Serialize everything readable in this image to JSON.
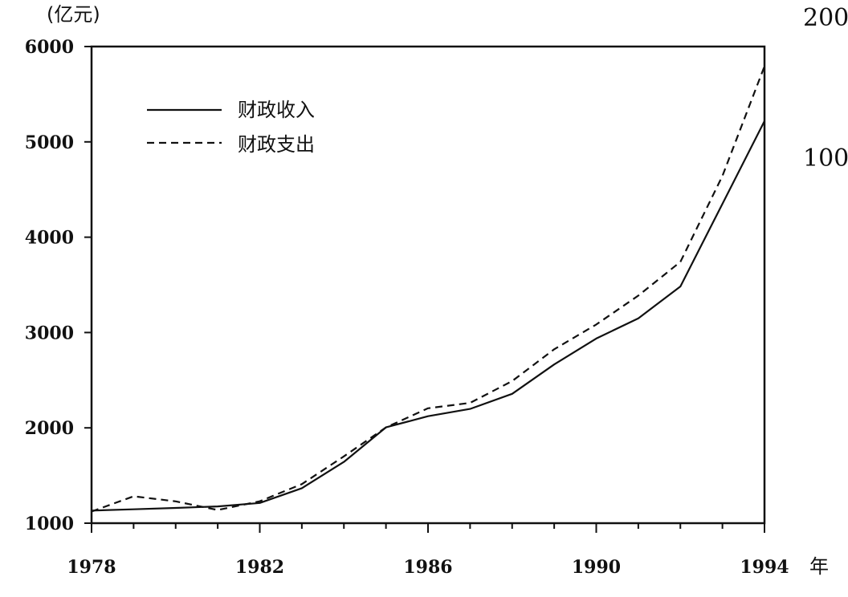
{
  "chart_data": {
    "type": "line",
    "ylabel": "(亿元)",
    "xlabel": "年",
    "xlim": [
      1978,
      1994
    ],
    "ylim": [
      1000,
      6000
    ],
    "x_ticks": [
      1978,
      1982,
      1986,
      1990,
      1994
    ],
    "y_ticks": [
      1000,
      2000,
      3000,
      4000,
      5000,
      6000
    ],
    "x": [
      1978,
      1979,
      1980,
      1981,
      1982,
      1983,
      1984,
      1985,
      1986,
      1987,
      1988,
      1989,
      1990,
      1991,
      1992,
      1993,
      1994
    ],
    "series": [
      {
        "name": "财政收入",
        "style": "solid",
        "values": [
          1132,
          1146,
          1160,
          1176,
          1212,
          1367,
          1643,
          2005,
          2122,
          2199,
          2357,
          2665,
          2937,
          3149,
          3483,
          4349,
          5218
        ]
      },
      {
        "name": "财政支出",
        "style": "dashed",
        "values": [
          1122,
          1282,
          1229,
          1138,
          1230,
          1410,
          1701,
          2004,
          2205,
          2262,
          2491,
          2824,
          3084,
          3387,
          3742,
          4642,
          5793
        ]
      }
    ],
    "legend_position": "top-left",
    "grid": false
  },
  "edge_text": [
    "200",
    "100"
  ]
}
